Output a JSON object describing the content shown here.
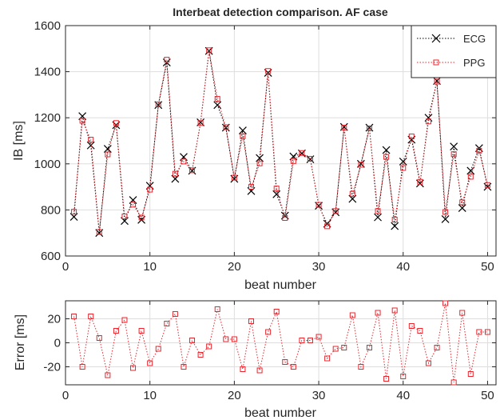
{
  "chart_data": [
    {
      "type": "line",
      "title": "Interbeat detection comparison. AF case",
      "xlabel": "beat number",
      "ylabel": "IB [ms]",
      "xlim": [
        0,
        51
      ],
      "ylim": [
        600,
        1600
      ],
      "xticks": [
        0,
        10,
        20,
        30,
        40,
        50
      ],
      "yticks": [
        600,
        800,
        1000,
        1200,
        1400,
        1600
      ],
      "grid": true,
      "legend": "top-right",
      "x": [
        1,
        2,
        3,
        4,
        5,
        6,
        7,
        8,
        9,
        10,
        11,
        12,
        13,
        14,
        15,
        16,
        17,
        18,
        19,
        20,
        21,
        22,
        23,
        24,
        25,
        26,
        27,
        28,
        29,
        30,
        31,
        32,
        33,
        34,
        35,
        36,
        37,
        38,
        39,
        40,
        41,
        42,
        43,
        44,
        45,
        46,
        47,
        48,
        49,
        50
      ],
      "series": [
        {
          "name": "ECG",
          "color": "#000000",
          "marker": "x",
          "values": [
            770,
            1207,
            1080,
            700,
            1065,
            1168,
            752,
            843,
            757,
            905,
            1255,
            1440,
            935,
            1030,
            970,
            1180,
            1490,
            1255,
            1157,
            935,
            1145,
            882,
            1025,
            1395,
            868,
            775,
            1032,
            1045,
            1020,
            818,
            740,
            790,
            1160,
            848,
            1000,
            1157,
            768,
            1060,
            730,
            1010,
            1105,
            915,
            1200,
            1360,
            760,
            1075,
            808,
            970,
            1068,
            900
          ]
        },
        {
          "name": "PPG",
          "color": "#e8242c",
          "marker": "square",
          "values": [
            792,
            1187,
            1105,
            704,
            1041,
            1177,
            772,
            823,
            767,
            888,
            1258,
            1452,
            957,
            1010,
            972,
            1177,
            1493,
            1282,
            1159,
            940,
            1120,
            900,
            1002,
            1403,
            893,
            765,
            1012,
            1047,
            1022,
            822,
            729,
            795,
            1157,
            870,
            996,
            1154,
            795,
            1030,
            758,
            982,
            1119,
            922,
            1184,
            1357,
            791,
            1042,
            833,
            944,
            1057,
            908
          ]
        }
      ]
    },
    {
      "type": "line",
      "title": "",
      "xlabel": "beat number",
      "ylabel": "Error [ms]",
      "xlim": [
        0,
        51
      ],
      "ylim": [
        -35,
        35
      ],
      "xticks": [
        0,
        10,
        20,
        30,
        40,
        50
      ],
      "yticks": [
        -20,
        0,
        20
      ],
      "grid": true,
      "x": [
        1,
        2,
        3,
        4,
        5,
        6,
        7,
        8,
        9,
        10,
        11,
        12,
        13,
        14,
        15,
        16,
        17,
        18,
        19,
        20,
        21,
        22,
        23,
        24,
        25,
        26,
        27,
        28,
        29,
        30,
        31,
        32,
        33,
        34,
        35,
        36,
        37,
        38,
        39,
        40,
        41,
        42,
        43,
        44,
        45,
        46,
        47,
        48,
        49,
        50
      ],
      "series": [
        {
          "color": "#e8242c",
          "marker": "square",
          "values": [
            22,
            -20,
            22,
            4,
            -27,
            10,
            19,
            -21,
            10,
            -17,
            -5,
            16,
            24,
            -20,
            2,
            -10,
            -3,
            28,
            3,
            3,
            -22,
            18,
            -23,
            9,
            26,
            -16,
            -20,
            2,
            2,
            5,
            -13,
            -5,
            -4,
            23,
            -20,
            -4,
            25,
            -30,
            27,
            -28,
            14,
            10,
            -17,
            -4,
            33,
            -33,
            25,
            -26,
            9,
            9
          ]
        }
      ]
    }
  ]
}
